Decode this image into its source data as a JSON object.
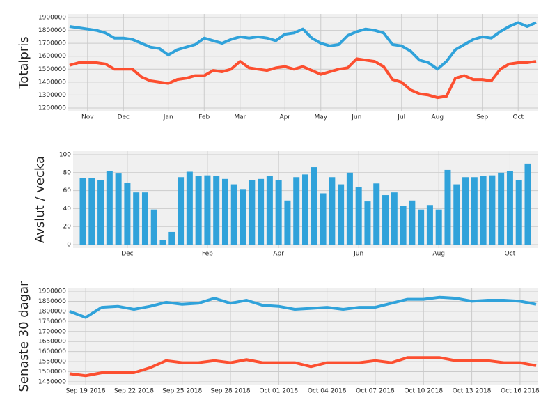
{
  "chart_data": [
    {
      "type": "line",
      "ylabel": "Totalpris",
      "categories": [
        null,
        null,
        "Nov",
        null,
        null,
        null,
        "Dec",
        null,
        null,
        null,
        null,
        "Jan",
        null,
        null,
        null,
        "Feb",
        null,
        null,
        null,
        "Mar",
        null,
        null,
        null,
        null,
        "Apr",
        null,
        null,
        null,
        "May",
        null,
        null,
        null,
        "Jun",
        null,
        null,
        null,
        null,
        "Jul",
        null,
        null,
        null,
        "Aug",
        null,
        null,
        null,
        null,
        "Sep",
        null,
        null,
        null,
        "Oct",
        null,
        null
      ],
      "series": [
        {
          "color": "#30a2da",
          "values": [
            1830000,
            1820000,
            1810000,
            1800000,
            1780000,
            1740000,
            1740000,
            1730000,
            1700000,
            1670000,
            1660000,
            1610000,
            1650000,
            1670000,
            1690000,
            1740000,
            1720000,
            1700000,
            1730000,
            1750000,
            1740000,
            1750000,
            1740000,
            1720000,
            1770000,
            1780000,
            1810000,
            1740000,
            1700000,
            1680000,
            1690000,
            1760000,
            1790000,
            1810000,
            1800000,
            1780000,
            1690000,
            1680000,
            1640000,
            1570000,
            1550000,
            1500000,
            1560000,
            1650000,
            1690000,
            1730000,
            1750000,
            1740000,
            1790000,
            1830000,
            1860000,
            1830000,
            1860000
          ]
        },
        {
          "color": "#fc4f30",
          "values": [
            1530000,
            1550000,
            1550000,
            1550000,
            1540000,
            1500000,
            1500000,
            1500000,
            1440000,
            1410000,
            1400000,
            1390000,
            1420000,
            1430000,
            1450000,
            1450000,
            1490000,
            1480000,
            1500000,
            1560000,
            1510000,
            1500000,
            1490000,
            1510000,
            1520000,
            1500000,
            1520000,
            1490000,
            1460000,
            1480000,
            1500000,
            1510000,
            1580000,
            1570000,
            1560000,
            1520000,
            1420000,
            1400000,
            1340000,
            1310000,
            1300000,
            1280000,
            1290000,
            1430000,
            1450000,
            1420000,
            1420000,
            1410000,
            1500000,
            1540000,
            1550000,
            1550000,
            1560000
          ]
        }
      ],
      "ylim": [
        1200000,
        1900000
      ],
      "yticks": [
        1200000,
        1300000,
        1400000,
        1500000,
        1600000,
        1700000,
        1800000,
        1900000
      ],
      "grid": true
    },
    {
      "type": "bar",
      "ylabel": "Avslut / vecka",
      "categories": [
        null,
        null,
        null,
        null,
        null,
        "Dec",
        null,
        null,
        null,
        null,
        null,
        null,
        null,
        null,
        "Feb",
        null,
        null,
        null,
        null,
        null,
        null,
        null,
        "Apr",
        null,
        null,
        null,
        null,
        null,
        null,
        null,
        null,
        "Jun",
        null,
        null,
        null,
        null,
        null,
        null,
        null,
        null,
        "Aug",
        null,
        null,
        null,
        null,
        null,
        null,
        null,
        "Oct",
        null,
        null
      ],
      "values": [
        74,
        74,
        72,
        82,
        79,
        69,
        58,
        58,
        39,
        5,
        14,
        75,
        81,
        76,
        77,
        76,
        73,
        67,
        61,
        72,
        73,
        76,
        72,
        49,
        75,
        78,
        86,
        57,
        75,
        67,
        80,
        64,
        48,
        68,
        55,
        58,
        43,
        49,
        39,
        44,
        39,
        83,
        67,
        75,
        75,
        76,
        77,
        80,
        82,
        72,
        90
      ],
      "color": "#30a2da",
      "ylim": [
        0,
        100
      ],
      "yticks": [
        0,
        20,
        40,
        60,
        80,
        100
      ],
      "grid": true
    },
    {
      "type": "line",
      "ylabel": "Senaste 30 dagar",
      "categories": [
        null,
        "Sep 19 2018",
        null,
        null,
        "Sep 22 2018",
        null,
        null,
        "Sep 25 2018",
        null,
        null,
        "Sep 28 2018",
        null,
        null,
        "Oct 01 2018",
        null,
        null,
        "Oct 04 2018",
        null,
        null,
        "Oct 07 2018",
        null,
        null,
        "Oct 10 2018",
        null,
        null,
        "Oct 13 2018",
        null,
        null,
        "Oct 16 2018",
        null
      ],
      "series": [
        {
          "color": "#30a2da",
          "values": [
            1800000,
            1770000,
            1820000,
            1825000,
            1810000,
            1825000,
            1845000,
            1835000,
            1840000,
            1865000,
            1840000,
            1855000,
            1830000,
            1825000,
            1810000,
            1815000,
            1820000,
            1810000,
            1820000,
            1820000,
            1840000,
            1860000,
            1860000,
            1870000,
            1865000,
            1850000,
            1855000,
            1855000,
            1850000,
            1835000
          ]
        },
        {
          "color": "#fc4f30",
          "values": [
            1490000,
            1480000,
            1495000,
            1495000,
            1495000,
            1520000,
            1555000,
            1545000,
            1545000,
            1555000,
            1545000,
            1560000,
            1545000,
            1545000,
            1545000,
            1525000,
            1545000,
            1545000,
            1545000,
            1555000,
            1545000,
            1570000,
            1570000,
            1570000,
            1555000,
            1555000,
            1555000,
            1545000,
            1545000,
            1530000
          ]
        }
      ],
      "ylim": [
        1450000,
        1900000
      ],
      "yticks": [
        1450000,
        1500000,
        1550000,
        1600000,
        1650000,
        1700000,
        1750000,
        1800000,
        1850000,
        1900000
      ],
      "grid": true
    }
  ]
}
